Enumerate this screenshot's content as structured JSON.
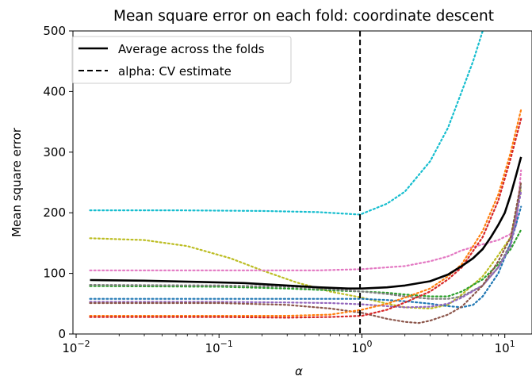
{
  "chart_data": {
    "type": "line",
    "title": "Mean square error on each fold: coordinate descent",
    "xlabel": "α",
    "ylabel": "Mean square error",
    "xscale": "log",
    "xlim": [
      0.0095,
      15.5
    ],
    "ylim": [
      0,
      500
    ],
    "grid": false,
    "legend": {
      "placement": "top-left",
      "entries": [
        {
          "label": "Average across the folds",
          "style": "solid",
          "color": "#000000"
        },
        {
          "label": "alpha: CV estimate",
          "style": "dashed",
          "color": "#000000"
        }
      ]
    },
    "x_ticks": [
      {
        "value": 0.01,
        "base": "10",
        "exp": "−2"
      },
      {
        "value": 0.1,
        "base": "10",
        "exp": "−1"
      },
      {
        "value": 1,
        "base": "10",
        "exp": "0"
      },
      {
        "value": 10,
        "base": "10",
        "exp": "1"
      }
    ],
    "y_ticks": [
      {
        "value": 0,
        "label": "0"
      },
      {
        "value": 100,
        "label": "100"
      },
      {
        "value": 200,
        "label": "200"
      },
      {
        "value": 300,
        "label": "300"
      },
      {
        "value": 400,
        "label": "400"
      },
      {
        "value": 500,
        "label": "500"
      }
    ],
    "vline": {
      "x": 0.97,
      "style": "dashed",
      "color": "#000000"
    },
    "average": {
      "color": "#000000",
      "points": [
        [
          0.0125,
          89
        ],
        [
          0.03,
          88
        ],
        [
          0.07,
          86
        ],
        [
          0.15,
          84
        ],
        [
          0.3,
          80
        ],
        [
          0.5,
          77
        ],
        [
          0.8,
          75
        ],
        [
          1.0,
          75
        ],
        [
          1.5,
          77
        ],
        [
          2,
          80
        ],
        [
          3,
          87
        ],
        [
          4,
          98
        ],
        [
          5,
          112
        ],
        [
          6,
          125
        ],
        [
          7,
          140
        ],
        [
          8,
          160
        ],
        [
          9,
          180
        ],
        [
          10,
          200
        ],
        [
          11,
          230
        ],
        [
          12,
          262
        ],
        [
          13,
          292
        ]
      ]
    },
    "folds": [
      {
        "color": "#17becf",
        "points": [
          [
            0.0125,
            204
          ],
          [
            0.05,
            204
          ],
          [
            0.2,
            203
          ],
          [
            0.5,
            201
          ],
          [
            0.97,
            197
          ],
          [
            1.5,
            215
          ],
          [
            2,
            235
          ],
          [
            3,
            285
          ],
          [
            4,
            340
          ],
          [
            5,
            400
          ],
          [
            6,
            450
          ],
          [
            7,
            500
          ],
          [
            8,
            545
          ],
          [
            8.5,
            580
          ]
        ]
      },
      {
        "color": "#bcbd22",
        "points": [
          [
            0.0125,
            158
          ],
          [
            0.03,
            155
          ],
          [
            0.06,
            145
          ],
          [
            0.12,
            125
          ],
          [
            0.2,
            105
          ],
          [
            0.35,
            85
          ],
          [
            0.6,
            70
          ],
          [
            1.0,
            60
          ],
          [
            1.5,
            50
          ],
          [
            2,
            44
          ],
          [
            3,
            42
          ],
          [
            4,
            48
          ],
          [
            5,
            65
          ],
          [
            7,
            95
          ],
          [
            9,
            130
          ],
          [
            11,
            160
          ],
          [
            13,
            240
          ]
        ]
      },
      {
        "color": "#e377c2",
        "points": [
          [
            0.0125,
            105
          ],
          [
            0.1,
            105
          ],
          [
            0.5,
            105
          ],
          [
            1.0,
            107
          ],
          [
            2,
            112
          ],
          [
            3,
            120
          ],
          [
            4,
            128
          ],
          [
            5,
            138
          ],
          [
            7,
            148
          ],
          [
            9,
            155
          ],
          [
            11,
            165
          ],
          [
            12,
            178
          ],
          [
            13,
            270
          ]
        ]
      },
      {
        "color": "#2ca02c",
        "points": [
          [
            0.0125,
            79
          ],
          [
            0.1,
            78
          ],
          [
            0.3,
            75
          ],
          [
            0.6,
            72
          ],
          [
            1.0,
            70
          ],
          [
            1.5,
            68
          ],
          [
            2,
            65
          ],
          [
            3,
            62
          ],
          [
            4,
            62
          ],
          [
            5,
            70
          ],
          [
            7,
            90
          ],
          [
            9,
            115
          ],
          [
            11,
            140
          ],
          [
            13,
            172
          ]
        ]
      },
      {
        "color": "#7f7f7f",
        "points": [
          [
            0.0125,
            81
          ],
          [
            0.1,
            80
          ],
          [
            0.3,
            78
          ],
          [
            0.6,
            74
          ],
          [
            1.0,
            70
          ],
          [
            1.5,
            66
          ],
          [
            2,
            62
          ],
          [
            3,
            58
          ],
          [
            4,
            58
          ],
          [
            5,
            62
          ],
          [
            7,
            80
          ],
          [
            9,
            110
          ],
          [
            11,
            150
          ],
          [
            13,
            245
          ]
        ]
      },
      {
        "color": "#1f77b4",
        "points": [
          [
            0.0125,
            58
          ],
          [
            0.1,
            58
          ],
          [
            0.3,
            58
          ],
          [
            0.6,
            58
          ],
          [
            1.0,
            58
          ],
          [
            1.5,
            56
          ],
          [
            2,
            54
          ],
          [
            3,
            50
          ],
          [
            4,
            46
          ],
          [
            5,
            44
          ],
          [
            6,
            48
          ],
          [
            7,
            62
          ],
          [
            9,
            100
          ],
          [
            11,
            150
          ],
          [
            13,
            210
          ]
        ]
      },
      {
        "color": "#9467bd",
        "points": [
          [
            0.0125,
            53
          ],
          [
            0.1,
            53
          ],
          [
            0.3,
            52
          ],
          [
            0.6,
            51
          ],
          [
            1.0,
            49
          ],
          [
            1.5,
            46
          ],
          [
            2,
            44
          ],
          [
            3,
            45
          ],
          [
            4,
            50
          ],
          [
            5,
            60
          ],
          [
            7,
            80
          ],
          [
            9,
            110
          ],
          [
            11,
            145
          ],
          [
            13,
            235
          ]
        ]
      },
      {
        "color": "#8c564b",
        "points": [
          [
            0.0125,
            51
          ],
          [
            0.1,
            51
          ],
          [
            0.3,
            48
          ],
          [
            0.6,
            42
          ],
          [
            1.0,
            35
          ],
          [
            1.5,
            25
          ],
          [
            2,
            20
          ],
          [
            2.5,
            18
          ],
          [
            3,
            22
          ],
          [
            4,
            32
          ],
          [
            5,
            45
          ],
          [
            7,
            80
          ],
          [
            9,
            120
          ],
          [
            11,
            160
          ],
          [
            13,
            250
          ]
        ]
      },
      {
        "color": "#ff7f0e",
        "points": [
          [
            0.0125,
            30
          ],
          [
            0.1,
            30
          ],
          [
            0.3,
            30
          ],
          [
            0.6,
            32
          ],
          [
            1.0,
            40
          ],
          [
            1.5,
            50
          ],
          [
            2,
            60
          ],
          [
            3,
            75
          ],
          [
            4,
            95
          ],
          [
            5,
            115
          ],
          [
            7,
            170
          ],
          [
            9,
            230
          ],
          [
            11,
            300
          ],
          [
            13,
            370
          ]
        ]
      },
      {
        "color": "#d62728",
        "points": [
          [
            0.0125,
            28
          ],
          [
            0.1,
            28
          ],
          [
            0.3,
            27
          ],
          [
            0.6,
            28
          ],
          [
            1.0,
            30
          ],
          [
            1.5,
            40
          ],
          [
            2,
            52
          ],
          [
            3,
            70
          ],
          [
            4,
            90
          ],
          [
            5,
            110
          ],
          [
            7,
            160
          ],
          [
            9,
            220
          ],
          [
            11,
            290
          ],
          [
            13,
            355
          ]
        ]
      }
    ]
  }
}
